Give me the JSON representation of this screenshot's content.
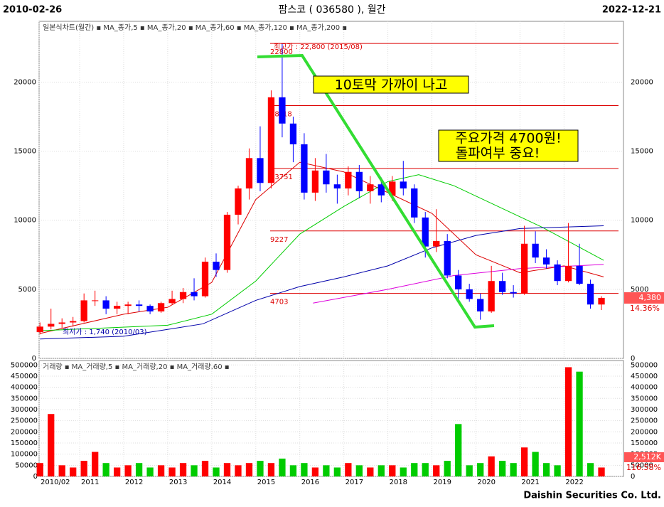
{
  "header": {
    "left": "2010-02-26",
    "title": "팜스코 ( 036580 ), 월간",
    "right": "2022-12-21",
    "footer": "Daishin Securities Co. Ltd."
  },
  "chart_data": [
    {
      "type": "candlestick",
      "legend_text": "일본식차트(월간) ▪ MA_종가,5 ▪ MA_종가,20 ▪ MA_종가,60 ▪ MA_종가,120 ▪ MA_종가,200 ▪",
      "x": [
        2010.1,
        2010.35,
        2010.6,
        2010.85,
        2011.1,
        2011.35,
        2011.6,
        2011.85,
        2012.1,
        2012.35,
        2012.6,
        2012.85,
        2013.1,
        2013.35,
        2013.6,
        2013.85,
        2014.1,
        2014.35,
        2014.6,
        2014.85,
        2015.1,
        2015.35,
        2015.6,
        2015.85,
        2016.1,
        2016.35,
        2016.6,
        2016.85,
        2017.1,
        2017.35,
        2017.6,
        2017.85,
        2018.1,
        2018.35,
        2018.6,
        2018.85,
        2019.1,
        2019.35,
        2019.6,
        2019.85,
        2020.1,
        2020.35,
        2020.6,
        2020.85,
        2021.1,
        2021.35,
        2021.6,
        2021.85,
        2022.1,
        2022.35,
        2022.6,
        2022.85
      ],
      "open": [
        1900,
        2300,
        2500,
        2600,
        2700,
        4200,
        4200,
        3600,
        3800,
        3900,
        3800,
        3400,
        4000,
        4300,
        4800,
        4500,
        7000,
        6400,
        10400,
        12300,
        14500,
        12700,
        18900,
        17000,
        15500,
        12000,
        13600,
        12600,
        12300,
        13500,
        12100,
        12600,
        11800,
        12800,
        12300,
        10200,
        8100,
        8500,
        6000,
        5000,
        4300,
        3400,
        5600,
        4800,
        4700,
        8300,
        7300,
        6800,
        5600,
        6700,
        5400,
        3900
      ],
      "high": [
        2600,
        3600,
        2900,
        3000,
        4700,
        4900,
        4500,
        4100,
        4100,
        4200,
        3900,
        4100,
        4900,
        5100,
        5800,
        7300,
        7600,
        10600,
        12500,
        15200,
        16800,
        19400,
        22800,
        17500,
        16300,
        14500,
        14800,
        13300,
        13900,
        14000,
        13200,
        13100,
        13200,
        14300,
        12600,
        10600,
        10800,
        9000,
        6400,
        5400,
        4700,
        6700,
        6200,
        5300,
        9600,
        9200,
        7900,
        7100,
        9800,
        8300,
        5700,
        4500
      ],
      "low": [
        1740,
        2100,
        2200,
        2300,
        2600,
        3800,
        3200,
        3200,
        3200,
        3400,
        3200,
        3300,
        3900,
        4000,
        4200,
        4400,
        5900,
        6200,
        9700,
        11500,
        12100,
        12300,
        16000,
        14200,
        11500,
        11400,
        12000,
        11200,
        11800,
        11600,
        11200,
        11300,
        11400,
        11800,
        9800,
        7300,
        7700,
        5800,
        4200,
        4100,
        2800,
        3300,
        4600,
        4400,
        4600,
        6900,
        6500,
        5300,
        5500,
        5300,
        3600,
        3500
      ],
      "close": [
        2300,
        2500,
        2600,
        2700,
        4200,
        4200,
        3600,
        3800,
        3900,
        3800,
        3400,
        4000,
        4300,
        4800,
        4500,
        7000,
        6400,
        10400,
        12300,
        14500,
        12700,
        18900,
        17000,
        15500,
        12000,
        13600,
        12600,
        12300,
        13500,
        12100,
        12600,
        11800,
        12800,
        12300,
        10200,
        8100,
        8500,
        6000,
        5000,
        4300,
        3400,
        5600,
        4800,
        4700,
        8300,
        7300,
        6800,
        5600,
        6700,
        5400,
        3900,
        4380
      ],
      "up_color": "#ff0000",
      "down_color": "#0000ff",
      "ma_lines": [
        {
          "name": "MA_종가,60",
          "color": "#dd0000",
          "x": [
            2010.1,
            2012,
            2013,
            2014,
            2015,
            2016,
            2017,
            2018,
            2019,
            2020,
            2021,
            2022,
            2022.9
          ],
          "values": [
            1800,
            3200,
            3700,
            5500,
            11500,
            14200,
            13500,
            12000,
            10500,
            7500,
            6200,
            6700,
            5900
          ]
        },
        {
          "name": "MA_종가,120",
          "color": "#00cc00",
          "x": [
            2010.1,
            2013,
            2014,
            2015,
            2016,
            2017,
            2018,
            2018.7,
            2019.5,
            2020.5,
            2021.5,
            2022.9
          ],
          "values": [
            2000,
            2400,
            3200,
            5600,
            9000,
            11000,
            12800,
            13300,
            12500,
            11000,
            9500,
            7100
          ]
        },
        {
          "name": "MA_종가,200",
          "color": "#0000aa",
          "x": [
            2010.1,
            2012,
            2013.8,
            2015,
            2016,
            2017,
            2018,
            2019,
            2020,
            2021,
            2022.9
          ],
          "values": [
            1400,
            1600,
            2500,
            4200,
            5200,
            5900,
            6700,
            8000,
            8900,
            9400,
            9600
          ]
        },
        {
          "color": "#dd00dd",
          "x": [
            2016.3,
            2018,
            2019.5,
            2021,
            2022.9
          ],
          "values": [
            4000,
            5000,
            6000,
            6500,
            6800
          ]
        }
      ],
      "levels": [
        {
          "value": 22800,
          "label": "22800"
        },
        {
          "value": 18300,
          "label": "18?18"
        },
        {
          "value": 13751,
          "label": "13751"
        },
        {
          "value": 9227,
          "label": "9227"
        },
        {
          "value": 4703,
          "label": "4703"
        }
      ],
      "high_label": "최고가 : 22,800 (2015/08)",
      "low_label": "최저가 : 1,740 (2010/03)",
      "last_price": "4,380",
      "last_change": "14.36%",
      "annotations": [
        "10토막 가까이 나고",
        "주요가격 4700원!",
        "돌파여부 중요!"
      ],
      "xlim": [
        2010.08,
        2023.35
      ],
      "ylim": [
        0,
        24400
      ],
      "yticks": [
        0,
        5000,
        10000,
        15000,
        20000
      ],
      "xticks": [
        {
          "value": 2010.08,
          "label": "2010/02"
        },
        2011,
        2012,
        2013,
        2014,
        2015,
        2016,
        2017,
        2018,
        2019,
        2020,
        2021,
        2022
      ]
    },
    {
      "type": "bar",
      "legend_text": "거래량 ▪ MA_거래량,5 ▪ MA_거래량,20 ▪ MA_거래량,60 ▪",
      "values": [
        60000,
        280000,
        50000,
        40000,
        70000,
        110000,
        60000,
        40000,
        50000,
        60000,
        40000,
        50000,
        40000,
        60000,
        50000,
        70000,
        40000,
        60000,
        50000,
        60000,
        70000,
        60000,
        80000,
        50000,
        60000,
        40000,
        50000,
        40000,
        60000,
        50000,
        40000,
        50000,
        50000,
        40000,
        60000,
        60000,
        50000,
        70000,
        235000,
        50000,
        60000,
        90000,
        70000,
        60000,
        130000,
        110000,
        60000,
        50000,
        490000,
        470000,
        60000,
        40000
      ],
      "last_volume": "2,512K",
      "last_volume_change": "116.58%",
      "ylim": [
        0,
        520000
      ],
      "yticks": [
        0,
        50000,
        100000,
        150000,
        200000,
        250000,
        300000,
        350000,
        400000,
        450000,
        500000
      ]
    }
  ]
}
